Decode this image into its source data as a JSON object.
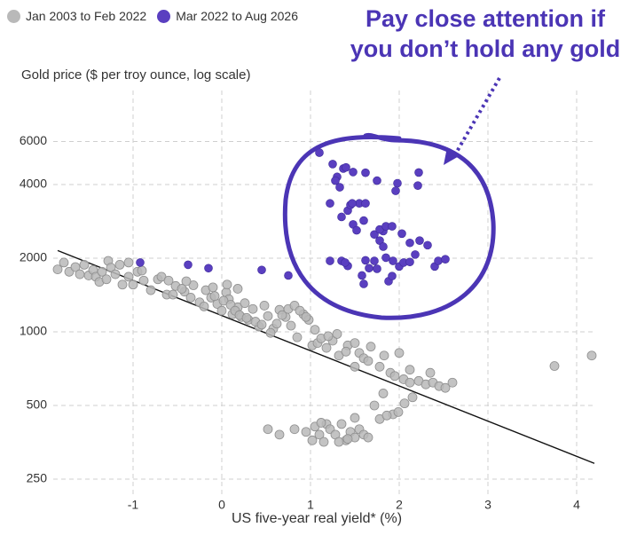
{
  "chart_data": {
    "type": "scatter",
    "ylabel": "Gold price ($ per troy ounce, log scale)",
    "xlabel": "US five-year real yield* (%)",
    "annotation": "Pay close attention if you don’t hold any gold",
    "x_ticks": [
      "-1",
      "0",
      "1",
      "2",
      "3",
      "4"
    ],
    "y_ticks": [
      "6000",
      "4000",
      "2000",
      "1000",
      "500",
      "250"
    ],
    "xlim": [
      -1.85,
      4.2
    ],
    "ylim": [
      250,
      6000
    ],
    "y_scale": "log",
    "grid": true,
    "legend_position": "top-left",
    "colors": {
      "grey": "#b9b9b9",
      "purple": "#5a3fc0",
      "annotation": "#4b35b5",
      "regression": "#111111"
    },
    "series": [
      {
        "name": "Jan 2003 to Feb 2022",
        "color": "#b9b9b9",
        "points": [
          [
            -1.85,
            1800
          ],
          [
            -1.78,
            1920
          ],
          [
            -1.72,
            1760
          ],
          [
            -1.65,
            1840
          ],
          [
            -1.6,
            1720
          ],
          [
            -1.55,
            1880
          ],
          [
            -1.5,
            1700
          ],
          [
            -1.45,
            1790
          ],
          [
            -1.42,
            1680
          ],
          [
            -1.38,
            1600
          ],
          [
            -1.35,
            1760
          ],
          [
            -1.3,
            1640
          ],
          [
            -1.28,
            1950
          ],
          [
            -1.25,
            1830
          ],
          [
            -1.2,
            1720
          ],
          [
            -1.15,
            1880
          ],
          [
            -1.12,
            1560
          ],
          [
            -1.05,
            1680
          ],
          [
            -1.0,
            1560
          ],
          [
            -0.95,
            1760
          ],
          [
            -0.88,
            1620
          ],
          [
            -0.8,
            1480
          ],
          [
            -0.72,
            1640
          ],
          [
            -0.62,
            1420
          ],
          [
            -0.52,
            1540
          ],
          [
            -0.42,
            1460
          ],
          [
            -0.35,
            1380
          ],
          [
            -0.25,
            1320
          ],
          [
            -0.2,
            1270
          ],
          [
            -0.12,
            1380
          ],
          [
            -0.05,
            1300
          ],
          [
            0.0,
            1220
          ],
          [
            0.05,
            1450
          ],
          [
            0.08,
            1360
          ],
          [
            0.12,
            1180
          ],
          [
            0.18,
            1260
          ],
          [
            0.22,
            1150
          ],
          [
            0.26,
            1310
          ],
          [
            0.3,
            1120
          ],
          [
            0.35,
            1240
          ],
          [
            0.42,
            1050
          ],
          [
            0.48,
            1280
          ],
          [
            0.52,
            1160
          ],
          [
            0.58,
            1030
          ],
          [
            0.65,
            1230
          ],
          [
            0.72,
            1150
          ],
          [
            0.78,
            1060
          ],
          [
            0.85,
            950
          ],
          [
            0.92,
            1180
          ],
          [
            0.98,
            1120
          ],
          [
            1.02,
            880
          ],
          [
            1.08,
            900
          ],
          [
            1.12,
            940
          ],
          [
            1.18,
            860
          ],
          [
            1.25,
            920
          ],
          [
            1.32,
            800
          ],
          [
            1.42,
            880
          ],
          [
            1.5,
            900
          ],
          [
            1.55,
            820
          ],
          [
            1.6,
            780
          ],
          [
            1.65,
            760
          ],
          [
            1.78,
            720
          ],
          [
            1.83,
            800
          ],
          [
            1.9,
            680
          ],
          [
            1.95,
            660
          ],
          [
            2.05,
            640
          ],
          [
            2.12,
            620
          ],
          [
            2.22,
            630
          ],
          [
            2.3,
            610
          ],
          [
            2.38,
            620
          ],
          [
            2.45,
            600
          ],
          [
            2.52,
            590
          ],
          [
            2.6,
            620
          ],
          [
            1.72,
            500
          ],
          [
            1.82,
            560
          ],
          [
            1.93,
            460
          ],
          [
            1.99,
            470
          ],
          [
            2.06,
            510
          ],
          [
            2.15,
            540
          ],
          [
            3.75,
            725
          ],
          [
            4.17,
            800
          ],
          [
            0.52,
            400
          ],
          [
            0.65,
            380
          ],
          [
            0.82,
            400
          ],
          [
            0.95,
            390
          ],
          [
            1.02,
            360
          ],
          [
            1.05,
            410
          ],
          [
            1.1,
            380
          ],
          [
            1.15,
            355
          ],
          [
            1.18,
            420
          ],
          [
            1.22,
            400
          ],
          [
            1.28,
            380
          ],
          [
            1.35,
            420
          ],
          [
            1.4,
            360
          ],
          [
            1.45,
            390
          ],
          [
            1.5,
            370
          ],
          [
            1.55,
            400
          ],
          [
            1.6,
            380
          ],
          [
            1.65,
            370
          ],
          [
            1.32,
            355
          ],
          [
            1.12,
            425
          ],
          [
            1.42,
            365
          ],
          [
            1.5,
            445
          ],
          [
            1.78,
            440
          ],
          [
            1.86,
            455
          ],
          [
            1.5,
            720
          ],
          [
            1.4,
            830
          ],
          [
            1.68,
            870
          ],
          [
            2.0,
            820
          ],
          [
            2.12,
            700
          ],
          [
            2.35,
            680
          ],
          [
            -0.55,
            1420
          ],
          [
            -0.45,
            1500
          ],
          [
            -0.32,
            1550
          ],
          [
            -0.18,
            1480
          ],
          [
            -0.08,
            1400
          ],
          [
            0.02,
            1340
          ],
          [
            0.1,
            1290
          ],
          [
            0.15,
            1220
          ],
          [
            0.2,
            1170
          ],
          [
            0.28,
            1140
          ],
          [
            0.38,
            1100
          ],
          [
            0.45,
            1070
          ],
          [
            0.55,
            990
          ],
          [
            0.62,
            1080
          ],
          [
            0.68,
            1170
          ],
          [
            0.75,
            1240
          ],
          [
            0.82,
            1280
          ],
          [
            0.88,
            1220
          ],
          [
            0.95,
            1150
          ],
          [
            1.05,
            1020
          ],
          [
            1.2,
            960
          ],
          [
            1.3,
            980
          ],
          [
            -1.05,
            1920
          ],
          [
            -0.9,
            1780
          ],
          [
            -0.68,
            1680
          ],
          [
            -0.6,
            1620
          ],
          [
            -0.4,
            1610
          ],
          [
            -0.1,
            1520
          ],
          [
            0.06,
            1560
          ],
          [
            0.18,
            1500
          ]
        ]
      },
      {
        "name": "Mar 2022 to Aug 2026",
        "color": "#5a3fc0",
        "points": [
          [
            -0.92,
            1920
          ],
          [
            -0.38,
            1880
          ],
          [
            -0.15,
            1820
          ],
          [
            0.45,
            1790
          ],
          [
            0.75,
            1700
          ],
          [
            1.1,
            5400
          ],
          [
            1.25,
            4850
          ],
          [
            1.37,
            4650
          ],
          [
            1.4,
            4700
          ],
          [
            1.48,
            4500
          ],
          [
            1.3,
            4300
          ],
          [
            1.62,
            4470
          ],
          [
            1.28,
            4150
          ],
          [
            1.33,
            3900
          ],
          [
            1.55,
            3350
          ],
          [
            1.75,
            4150
          ],
          [
            1.98,
            4050
          ],
          [
            1.96,
            3770
          ],
          [
            2.22,
            4480
          ],
          [
            2.21,
            3960
          ],
          [
            1.22,
            3350
          ],
          [
            1.42,
            3130
          ],
          [
            1.45,
            3300
          ],
          [
            1.47,
            3350
          ],
          [
            1.62,
            3350
          ],
          [
            1.35,
            2950
          ],
          [
            1.48,
            2750
          ],
          [
            1.52,
            2600
          ],
          [
            1.6,
            2850
          ],
          [
            1.72,
            2500
          ],
          [
            1.82,
            2580
          ],
          [
            1.78,
            2620
          ],
          [
            1.85,
            2700
          ],
          [
            1.92,
            2700
          ],
          [
            1.78,
            2360
          ],
          [
            1.82,
            2230
          ],
          [
            2.03,
            2520
          ],
          [
            2.12,
            2310
          ],
          [
            2.23,
            2360
          ],
          [
            2.32,
            2260
          ],
          [
            1.85,
            2010
          ],
          [
            1.72,
            1950
          ],
          [
            1.62,
            1960
          ],
          [
            1.66,
            1820
          ],
          [
            1.58,
            1700
          ],
          [
            1.75,
            1810
          ],
          [
            1.93,
            1950
          ],
          [
            2.0,
            1850
          ],
          [
            2.05,
            1920
          ],
          [
            2.12,
            1930
          ],
          [
            2.18,
            2070
          ],
          [
            2.4,
            1850
          ],
          [
            2.44,
            1950
          ],
          [
            2.52,
            1980
          ],
          [
            1.88,
            1610
          ],
          [
            1.92,
            1690
          ],
          [
            1.6,
            1570
          ],
          [
            1.42,
            1860
          ],
          [
            1.35,
            1950
          ],
          [
            1.39,
            1920
          ],
          [
            1.22,
            1950
          ]
        ]
      }
    ],
    "regression_line": {
      "x": [
        -1.85,
        4.2
      ],
      "y": [
        2150,
        290
      ]
    }
  }
}
